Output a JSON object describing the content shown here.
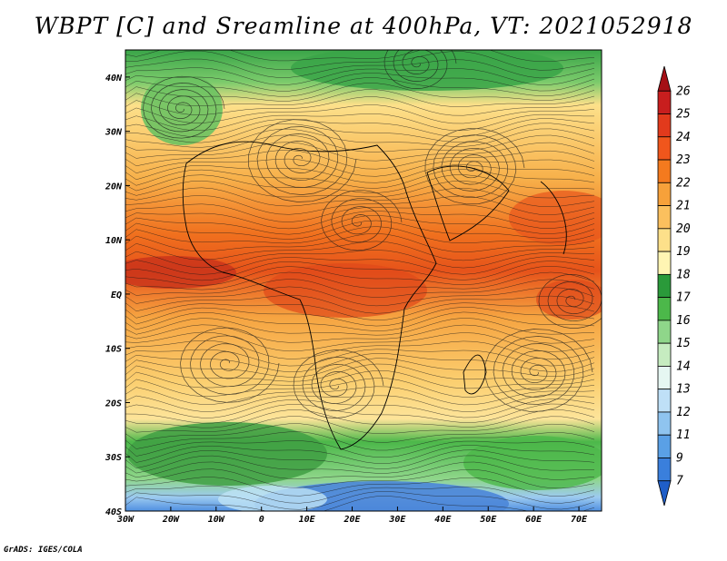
{
  "title": "WBPT [C] and Sreamline at 400hPa, VT: 2021052918",
  "credit": "GrADS: IGES/COLA",
  "map": {
    "lon_labels": [
      "30W",
      "20W",
      "10W",
      "0",
      "10E",
      "20E",
      "30E",
      "40E",
      "50E",
      "60E",
      "70E"
    ],
    "lat_labels": [
      "40N",
      "30N",
      "20N",
      "10N",
      "EQ",
      "10S",
      "20S",
      "30S",
      "40S"
    ],
    "lon_range": [
      -30,
      75
    ],
    "lat_range": [
      -40,
      45
    ]
  },
  "colorbar": {
    "labels": [
      "26",
      "25",
      "24",
      "23",
      "22",
      "21",
      "20",
      "19",
      "18",
      "17",
      "16",
      "15",
      "14",
      "13",
      "12",
      "11",
      "9",
      "7"
    ],
    "colors": [
      "#a50f15",
      "#c81e1e",
      "#e23a1c",
      "#f0561c",
      "#f47a1e",
      "#f7a13a",
      "#fbc05e",
      "#fde08a",
      "#fff5b3",
      "#2a9a3a",
      "#4cb84a",
      "#8fd68a",
      "#c6ecc0",
      "#e6f7f2",
      "#bfe0f7",
      "#8fc4ef",
      "#5aa0e6",
      "#3a7fdc",
      "#1f5ec8"
    ]
  }
}
